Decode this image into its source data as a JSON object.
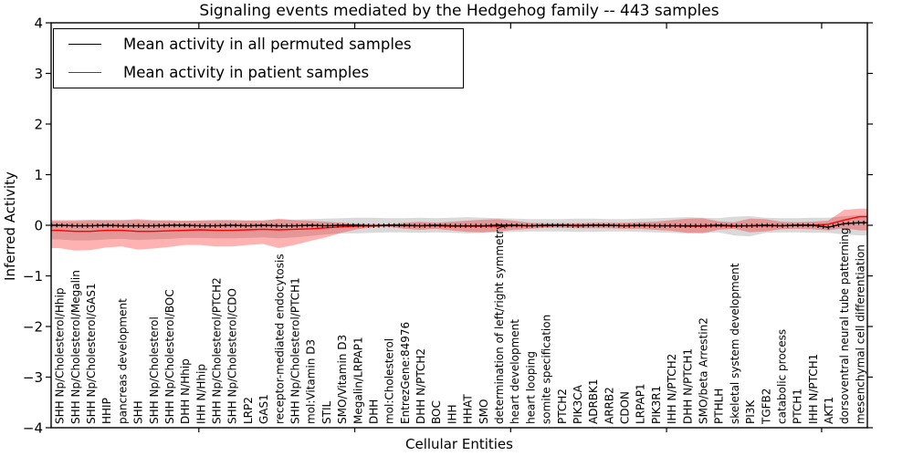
{
  "chart_data": {
    "type": "line",
    "title": "Signaling events mediated by the Hedgehog family -- 443 samples",
    "xlabel": "Cellular Entities",
    "ylabel": "Inferred Activity",
    "ylim": [
      -4,
      4
    ],
    "yticks": [
      -4,
      -3,
      -2,
      -1,
      0,
      1,
      2,
      3,
      4
    ],
    "yticklabels": [
      "−4",
      "−3",
      "−2",
      "−1",
      "0",
      "1",
      "2",
      "3",
      "4"
    ],
    "grid": false,
    "legend_position": "upper left",
    "categories": [
      "SHH Np/Cholesterol/Hhip",
      "SHH Np/Cholesterol/Megalin",
      "SHH Np/Cholesterol/GAS1",
      "HHIP",
      "pancreas development",
      "SHH",
      "SHH Np/Cholesterol",
      "SHH Np/Cholesterol/BOC",
      "DHH N/Hhip",
      "IHH N/Hhip",
      "SHH Np/Cholesterol/PTCH2",
      "SHH Np/Cholesterol/CDO",
      "LRP2",
      "GAS1",
      "receptor-mediated endocytosis",
      "SHH Np/Cholesterol/PTCH1",
      "mol:Vitamin D3",
      "STIL",
      "SMO/Vitamin D3",
      "Megalin/LRPAP1",
      "DHH",
      "mol:Cholesterol",
      "EntrezGene:84976",
      "DHH N/PTCH2",
      "BOC",
      "IHH",
      "HHAT",
      "SMO",
      "determination of left/right symmetry",
      "heart development",
      "heart looping",
      "somite specification",
      "PTCH2",
      "PIK3CA",
      "ADRBK1",
      "ARRB2",
      "CDON",
      "LRPAP1",
      "PIK3R1",
      "IHH N/PTCH2",
      "DHH N/PTCH1",
      "SMO/beta Arrestin2",
      "PTHLH",
      "skeletal system development",
      "PI3K",
      "TGFB2",
      "catabolic process",
      "PTCH1",
      "IHH N/PTCH1",
      "AKT1",
      "dorsoventral neural tube patterning",
      "mesenchymal cell differentiation"
    ],
    "series": [
      {
        "name": "Mean activity in all permuted samples",
        "color": "#000000",
        "style": "solid-with-dots",
        "values": [
          0,
          -0.01,
          -0.01,
          0,
          -0.01,
          -0.01,
          -0.01,
          0,
          0,
          -0.01,
          -0.01,
          0,
          -0.01,
          0,
          -0.01,
          -0.01,
          0,
          -0.01,
          0,
          0,
          -0.01,
          0,
          0,
          -0.01,
          0,
          -0.01,
          -0.01,
          -0.01,
          0,
          0,
          -0.01,
          0,
          0,
          -0.01,
          0,
          0,
          -0.01,
          0,
          -0.01,
          -0.01,
          -0.01,
          -0.01,
          0,
          -0.01,
          -0.01,
          0,
          -0.01,
          0,
          0,
          -0.04,
          0.03,
          0.05
        ]
      },
      {
        "name": "Mean activity in patient samples",
        "color": "#ff0000",
        "style": "solid",
        "values": [
          -0.1,
          -0.12,
          -0.12,
          -0.1,
          -0.1,
          -0.12,
          -0.12,
          -0.11,
          -0.1,
          -0.09,
          -0.1,
          -0.1,
          -0.09,
          -0.08,
          -0.09,
          -0.08,
          -0.07,
          -0.05,
          -0.03,
          -0.02,
          -0.01,
          0.0,
          -0.01,
          -0.01,
          -0.01,
          -0.02,
          -0.02,
          -0.02,
          -0.02,
          -0.01,
          -0.01,
          -0.01,
          0.0,
          0.0,
          0.0,
          0.0,
          -0.01,
          -0.01,
          -0.01,
          -0.01,
          -0.02,
          -0.02,
          -0.01,
          -0.02,
          -0.01,
          -0.01,
          -0.01,
          0.0,
          0.0,
          0.02,
          0.1,
          0.17
        ]
      }
    ],
    "bands": [
      {
        "name": "permuted-band",
        "color": "#808080",
        "opacity": 0.3,
        "upper": [
          0.08,
          0.08,
          0.09,
          0.1,
          0.1,
          0.1,
          0.09,
          0.09,
          0.09,
          0.1,
          0.1,
          0.1,
          0.1,
          0.1,
          0.11,
          0.11,
          0.12,
          0.13,
          0.14,
          0.15,
          0.15,
          0.14,
          0.14,
          0.15,
          0.14,
          0.15,
          0.16,
          0.15,
          0.14,
          0.13,
          0.12,
          0.12,
          0.12,
          0.13,
          0.13,
          0.12,
          0.12,
          0.13,
          0.14,
          0.15,
          0.16,
          0.15,
          0.14,
          0.17,
          0.18,
          0.15,
          0.14,
          0.14,
          0.15,
          0.15,
          0.18,
          0.2
        ],
        "lower": [
          -0.28,
          -0.3,
          -0.3,
          -0.28,
          -0.27,
          -0.29,
          -0.28,
          -0.27,
          -0.25,
          -0.25,
          -0.26,
          -0.26,
          -0.25,
          -0.24,
          -0.26,
          -0.24,
          -0.21,
          -0.18,
          -0.16,
          -0.16,
          -0.15,
          -0.14,
          -0.14,
          -0.15,
          -0.14,
          -0.15,
          -0.16,
          -0.15,
          -0.14,
          -0.13,
          -0.12,
          -0.12,
          -0.12,
          -0.13,
          -0.13,
          -0.12,
          -0.12,
          -0.13,
          -0.14,
          -0.15,
          -0.16,
          -0.15,
          -0.14,
          -0.2,
          -0.22,
          -0.15,
          -0.14,
          -0.14,
          -0.15,
          -0.15,
          -0.18,
          -0.2
        ]
      },
      {
        "name": "patient-band",
        "color": "#ff0000",
        "opacity": 0.3,
        "upper": [
          0.1,
          0.1,
          0.11,
          0.1,
          0.1,
          0.12,
          0.1,
          0.1,
          0.09,
          0.09,
          0.1,
          0.1,
          0.09,
          0.09,
          0.13,
          0.1,
          0.09,
          0.07,
          0.05,
          0.03,
          0.02,
          0.02,
          0.05,
          0.07,
          0.05,
          0.07,
          0.09,
          0.11,
          0.12,
          0.09,
          0.05,
          0.04,
          0.04,
          0.04,
          0.05,
          0.05,
          0.05,
          0.06,
          0.07,
          0.1,
          0.13,
          0.14,
          0.08,
          0.06,
          0.13,
          0.12,
          0.07,
          0.06,
          0.07,
          0.09,
          0.3,
          0.33
        ],
        "lower": [
          -0.45,
          -0.5,
          -0.49,
          -0.44,
          -0.42,
          -0.48,
          -0.46,
          -0.43,
          -0.39,
          -0.39,
          -0.42,
          -0.42,
          -0.39,
          -0.37,
          -0.45,
          -0.39,
          -0.31,
          -0.24,
          -0.15,
          -0.08,
          -0.04,
          -0.03,
          -0.07,
          -0.09,
          -0.07,
          -0.1,
          -0.13,
          -0.14,
          -0.12,
          -0.09,
          -0.07,
          -0.05,
          -0.05,
          -0.06,
          -0.06,
          -0.06,
          -0.07,
          -0.07,
          -0.09,
          -0.11,
          -0.15,
          -0.16,
          -0.09,
          -0.07,
          -0.14,
          -0.12,
          -0.08,
          -0.07,
          -0.08,
          -0.1,
          -0.06,
          -0.1
        ]
      }
    ]
  }
}
